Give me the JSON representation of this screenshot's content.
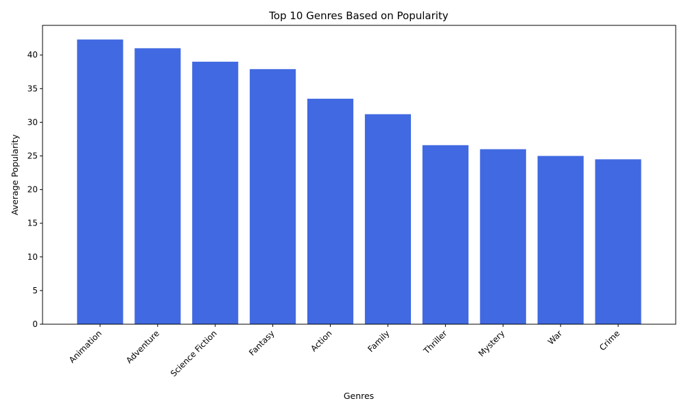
{
  "chart_data": {
    "type": "bar",
    "title": "Top 10 Genres Based on Popularity",
    "xlabel": "Genres",
    "ylabel": "Average Popularity",
    "categories": [
      "Animation",
      "Adventure",
      "Science Fiction",
      "Fantasy",
      "Action",
      "Family",
      "Thriller",
      "Mystery",
      "War",
      "Crime"
    ],
    "values": [
      42.3,
      41.0,
      39.0,
      37.9,
      33.5,
      31.2,
      26.6,
      26.0,
      25.0,
      24.5
    ],
    "ylim": [
      0,
      44.4
    ],
    "yticks": [
      0,
      5,
      10,
      15,
      20,
      25,
      30,
      35,
      40
    ],
    "bar_color": "#4169E1",
    "grid": false,
    "legend": "none"
  }
}
